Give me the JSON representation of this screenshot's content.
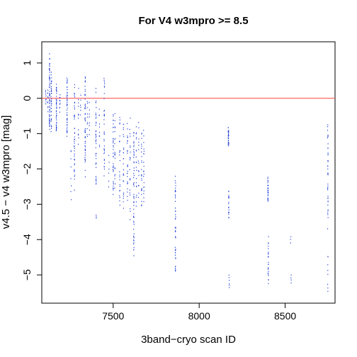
{
  "chart_data": {
    "type": "scatter",
    "title": "For V4 w3mpro >= 8.5",
    "xlabel": "3band−cryo scan ID",
    "ylabel": "v4.5 − v4 w3mpro [mag]",
    "xlim": [
      7085,
      8790
    ],
    "ylim": [
      -5.8,
      1.6
    ],
    "x_ticks": [
      7500,
      8000,
      8500
    ],
    "x_tick_labels": [
      "7500",
      "8000",
      "8500"
    ],
    "y_ticks": [
      1,
      0,
      -1,
      -2,
      -3,
      -4,
      -5
    ],
    "y_tick_labels": [
      "1",
      "0",
      "−1",
      "−2",
      "−3",
      "−4",
      "−5"
    ],
    "reference_line": {
      "y": 0,
      "color": "#ff4040"
    },
    "point_color": "#1f3fd6",
    "columns": [
      {
        "x": 7108,
        "ymin": -0.2,
        "ymax": 0.25,
        "n": 8
      },
      {
        "x": 7120,
        "ymin": -0.4,
        "ymax": 0.3,
        "n": 10
      },
      {
        "x": 7130,
        "ymin": -1.1,
        "ymax": 1.35,
        "n": 70
      },
      {
        "x": 7140,
        "ymin": -1.0,
        "ymax": 0.8,
        "n": 40
      },
      {
        "x": 7170,
        "ymin": -1.05,
        "ymax": 0.45,
        "n": 40
      },
      {
        "x": 7190,
        "ymin": -0.4,
        "ymax": 0.15,
        "n": 10
      },
      {
        "x": 7232,
        "ymin": -1.15,
        "ymax": 0.65,
        "n": 45
      },
      {
        "x": 7255,
        "ymin": -2.9,
        "ymax": -1.3,
        "n": 8
      },
      {
        "x": 7275,
        "ymin": -2.7,
        "ymax": 0.55,
        "n": 45
      },
      {
        "x": 7298,
        "ymin": -1.5,
        "ymax": 0.3,
        "n": 12
      },
      {
        "x": 7310,
        "ymin": -0.5,
        "ymax": 0.1,
        "n": 6
      },
      {
        "x": 7337,
        "ymin": -2.3,
        "ymax": 0.75,
        "n": 55
      },
      {
        "x": 7350,
        "ymin": -1.2,
        "ymax": 0.1,
        "n": 10
      },
      {
        "x": 7362,
        "ymin": -1.1,
        "ymax": -0.1,
        "n": 8
      },
      {
        "x": 7400,
        "ymin": -2.6,
        "ymax": 0.3,
        "n": 40
      },
      {
        "x": 7402,
        "ymin": -3.4,
        "ymax": -3.3,
        "n": 3
      },
      {
        "x": 7420,
        "ymin": -1.5,
        "ymax": -0.2,
        "n": 10
      },
      {
        "x": 7448,
        "ymin": -2.45,
        "ymax": 0.75,
        "n": 35
      },
      {
        "x": 7475,
        "ymin": -2.6,
        "ymax": -1.6,
        "n": 6
      },
      {
        "x": 7500,
        "ymin": -2.9,
        "ymax": -0.3,
        "n": 35
      },
      {
        "x": 7510,
        "ymin": -2.7,
        "ymax": -0.4,
        "n": 20
      },
      {
        "x": 7538,
        "ymin": -3.2,
        "ymax": -0.4,
        "n": 25
      },
      {
        "x": 7560,
        "ymin": -3.3,
        "ymax": -0.5,
        "n": 25
      },
      {
        "x": 7583,
        "ymin": -3.0,
        "ymax": -0.6,
        "n": 25
      },
      {
        "x": 7598,
        "ymin": -3.5,
        "ymax": -0.5,
        "n": 20
      },
      {
        "x": 7620,
        "ymin": -4.7,
        "ymax": -0.6,
        "n": 55
      },
      {
        "x": 7635,
        "ymin": -3.2,
        "ymax": -0.7,
        "n": 20
      },
      {
        "x": 7648,
        "ymin": -3.1,
        "ymax": -0.6,
        "n": 15
      },
      {
        "x": 7665,
        "ymin": -3.3,
        "ymax": -0.9,
        "n": 25
      },
      {
        "x": 7678,
        "ymin": -3.1,
        "ymax": -0.9,
        "n": 20
      },
      {
        "x": 7862,
        "ymin": -5.2,
        "ymax": -2.0,
        "n": 45
      },
      {
        "x": 8170,
        "ymin": -1.4,
        "ymax": -0.8,
        "n": 30
      },
      {
        "x": 8172,
        "ymin": -3.5,
        "ymax": -2.5,
        "n": 18
      },
      {
        "x": 8174,
        "ymin": -5.4,
        "ymax": -5.0,
        "n": 6
      },
      {
        "x": 8400,
        "ymin": -3.0,
        "ymax": -2.2,
        "n": 25
      },
      {
        "x": 8402,
        "ymin": -5.3,
        "ymax": -3.9,
        "n": 25
      },
      {
        "x": 8532,
        "ymin": -4.1,
        "ymax": -3.9,
        "n": 3
      },
      {
        "x": 8534,
        "ymin": -5.25,
        "ymax": -5.0,
        "n": 4
      },
      {
        "x": 8748,
        "ymin": -3.7,
        "ymax": -0.55,
        "n": 40
      },
      {
        "x": 8748,
        "ymin": -5.6,
        "ymax": -4.3,
        "n": 8
      }
    ]
  }
}
